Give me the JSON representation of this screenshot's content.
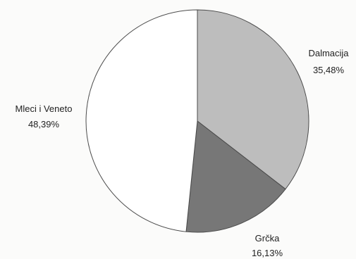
{
  "chart_data": {
    "type": "pie",
    "title": "",
    "slices": [
      {
        "label": "Dalmacija",
        "value": 35.48,
        "value_label": "35,48%",
        "color": "#bdbdbd"
      },
      {
        "label": "Grčka",
        "value": 16.13,
        "value_label": "16,13%",
        "color": "#777777"
      },
      {
        "label": "Mleci i Veneto",
        "value": 48.39,
        "value_label": "48,39%",
        "color": "#ffffff"
      }
    ],
    "start": "12 o'clock",
    "direction": "clockwise",
    "legend": "none",
    "labels_position": "outside"
  }
}
